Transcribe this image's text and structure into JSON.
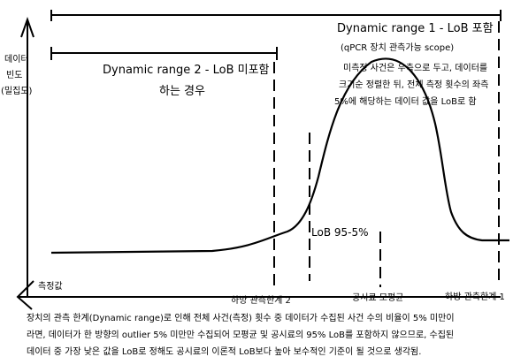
{
  "axes": {
    "y_label_lines": [
      "데이터",
      "빈도",
      "(밀집도)"
    ],
    "x_label": "측정값"
  },
  "ranges": {
    "range1_title": "Dynamic range 1 - LoB 포함",
    "range1_subtitle": "(qPCR 장치 관측가능 scope)",
    "range2_title": "Dynamic range 2 - LoB 미포함",
    "range2_subtitle": "하는 경우"
  },
  "annotations": {
    "note_lines": [
      "미측정 사건은 우측으로 두고, 데이터를",
      "크기순 정렬한 뒤, 전체 측정 횟수의 좌측",
      "5%에 해당하는 데이터 값을 LoB로 함"
    ],
    "lob_label": "LoB 95-5%",
    "lower_limit": "하방 관측한계 2",
    "sample_mean": "공시료 모평균",
    "upper_limit": "하방 관측한계 1"
  },
  "footer_lines": [
    "장치의 관측 한계(Dynamic range)로 인해 전체 사건(측정) 횟수 중 데이터가 수집된 사건 수의 비율이 5% 미만이",
    "라면, 데이터가 한 방향의 outlier 5% 미만만 수집되어 모평균 및 공시료의 95% LoB를 포함하지 않으므로, 수집된",
    "데이터 중 가장 낮은 값을 LoB로 정해도 공시료의 이론적 LoB보다 높아 보수적인 기준이 될 것으로 생각됨."
  ]
}
